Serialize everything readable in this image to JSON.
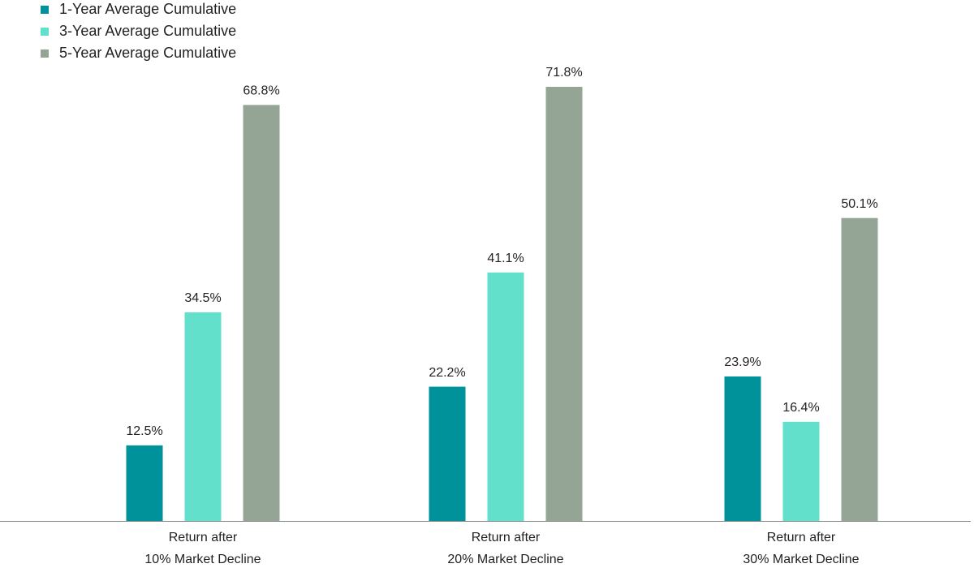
{
  "chart_data": {
    "type": "bar",
    "categories": [
      [
        "Return after",
        "10% Market Decline"
      ],
      [
        "Return after",
        "20% Market Decline"
      ],
      [
        "Return after",
        "30% Market Decline"
      ]
    ],
    "series": [
      {
        "name": "1-Year Average Cumulative",
        "color": "#00929a",
        "values": [
          12.5,
          22.2,
          23.9
        ],
        "value_labels": [
          "12.5%",
          "22.2%",
          "23.9%"
        ]
      },
      {
        "name": "3-Year Average Cumulative",
        "color": "#63e0cc",
        "values": [
          34.5,
          41.1,
          16.4
        ],
        "value_labels": [
          "34.5%",
          "41.1%",
          "16.4%"
        ]
      },
      {
        "name": "5-Year Average Cumulative",
        "color": "#94a596",
        "values": [
          68.8,
          71.8,
          50.1
        ],
        "value_labels": [
          "68.8%",
          "71.8%",
          "50.1%"
        ]
      }
    ],
    "legend": "top-left"
  }
}
